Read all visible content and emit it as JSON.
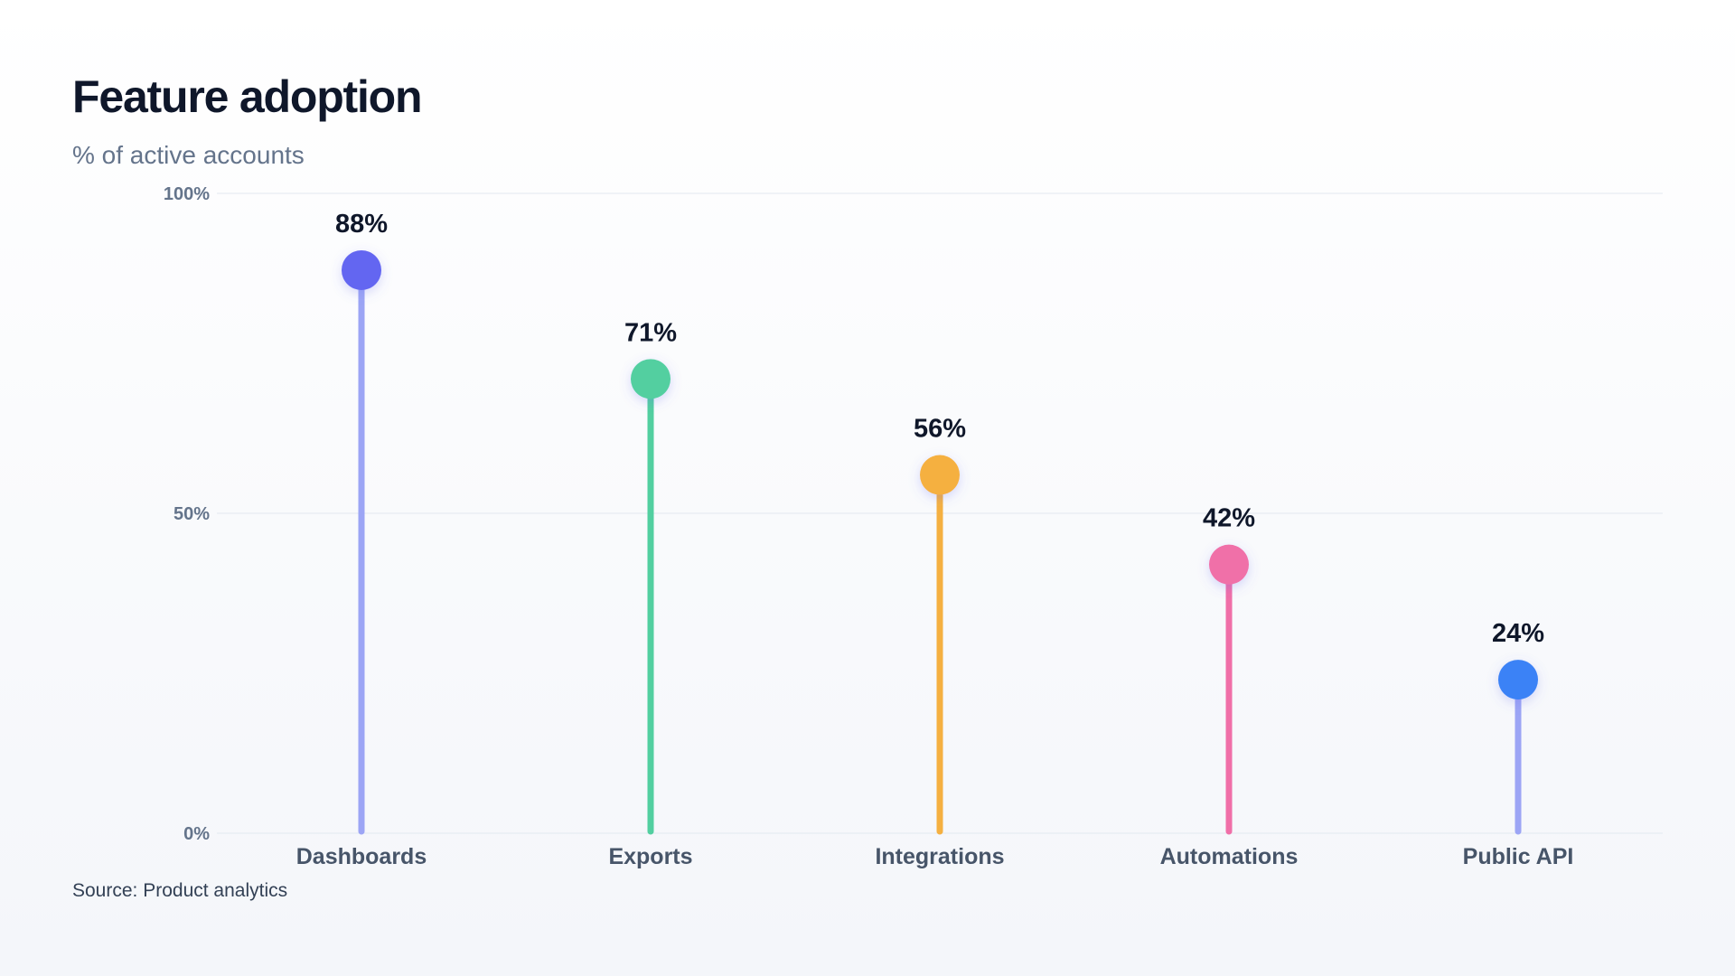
{
  "header": {
    "title": "Feature adoption",
    "subtitle": "% of active accounts"
  },
  "footer": {
    "source": "Source: Product analytics"
  },
  "chart_data": {
    "type": "lollipop",
    "title": "Feature adoption",
    "subtitle": "% of active accounts",
    "categories": [
      "Dashboards",
      "Exports",
      "Integrations",
      "Automations",
      "Public API"
    ],
    "values": [
      88,
      71,
      56,
      42,
      24
    ],
    "value_labels": [
      "88%",
      "71%",
      "56%",
      "42%",
      "24%"
    ],
    "colors": [
      "#6366f1",
      "#52cfa0",
      "#f5b041",
      "#f06fa8",
      "#3b82f6"
    ],
    "stem_colors": [
      "#9ca5f5",
      "#52cfa0",
      "#f5b041",
      "#f06fa8",
      "#9ca5f5"
    ],
    "ylim": [
      0,
      100
    ],
    "yticks": [
      0,
      50,
      100
    ],
    "ytick_labels": [
      "0%",
      "50%",
      "100%"
    ],
    "grid": true,
    "legend": "none",
    "xlabel": "",
    "ylabel": ""
  }
}
